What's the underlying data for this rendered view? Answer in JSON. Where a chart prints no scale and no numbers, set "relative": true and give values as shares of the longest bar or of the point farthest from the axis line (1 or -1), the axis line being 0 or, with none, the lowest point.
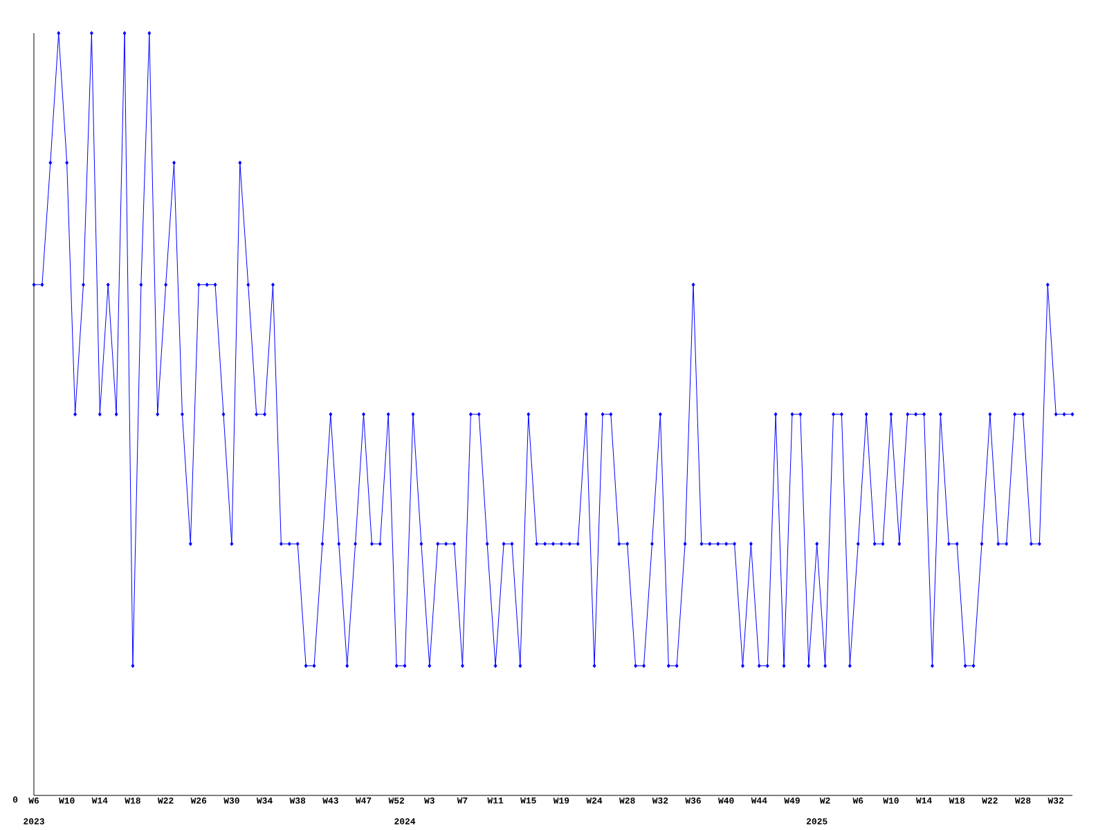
{
  "chart_data": {
    "type": "line",
    "relative": true,
    "color": "#0000ff",
    "marker": "diamond",
    "line_style": "solid",
    "categories": [
      "W6",
      null,
      null,
      null,
      "W10",
      null,
      null,
      null,
      "W14",
      null,
      null,
      null,
      "W18",
      null,
      null,
      null,
      "W22",
      null,
      null,
      null,
      "W26",
      null,
      null,
      null,
      "W30",
      null,
      null,
      null,
      "W34",
      null,
      null,
      null,
      "W38",
      null,
      null,
      null,
      "W43",
      null,
      null,
      null,
      "W47",
      null,
      null,
      null,
      "W52",
      null,
      null,
      null,
      "W3",
      null,
      null,
      null,
      "W7",
      null,
      null,
      null,
      "W11",
      null,
      null,
      null,
      "W15",
      null,
      null,
      null,
      "W19",
      null,
      null,
      null,
      "W24",
      null,
      null,
      null,
      "W28",
      null,
      null,
      null,
      "W32",
      null,
      null,
      null,
      "W36",
      null,
      null,
      null,
      "W40",
      null,
      null,
      null,
      "W44",
      null,
      null,
      null,
      "W49",
      null,
      null,
      null,
      "W2",
      null,
      null,
      null,
      "W6",
      null,
      null,
      null,
      "W10",
      null,
      null,
      null,
      "W14",
      null,
      null,
      null,
      "W18",
      null,
      null,
      null,
      "W22",
      null,
      null,
      null,
      "W28",
      null,
      null,
      null,
      "W32",
      null,
      null
    ],
    "values": [
      0.67,
      0.67,
      0.83,
      1,
      0.83,
      0.5,
      0.67,
      1,
      0.5,
      0.67,
      0.5,
      1,
      0.17,
      0.67,
      1,
      0.5,
      0.67,
      0.83,
      0.5,
      0.33,
      0.67,
      0.67,
      0.67,
      0.5,
      0.33,
      0.83,
      0.67,
      0.5,
      0.5,
      0.67,
      0.33,
      0.33,
      0.33,
      0.17,
      0.17,
      0.33,
      0.5,
      0.33,
      0.17,
      0.33,
      0.5,
      0.33,
      0.33,
      0.5,
      0.17,
      0.17,
      0.5,
      0.33,
      0.17,
      0.33,
      0.33,
      0.33,
      0.17,
      0.5,
      0.5,
      0.33,
      0.17,
      0.33,
      0.33,
      0.17,
      0.5,
      0.33,
      0.33,
      0.33,
      0.33,
      0.33,
      0.33,
      0.5,
      0.17,
      0.5,
      0.5,
      0.33,
      0.33,
      0.17,
      0.17,
      0.33,
      0.5,
      0.17,
      0.17,
      0.33,
      0.67,
      0.33,
      0.33,
      0.33,
      0.33,
      0.33,
      0.17,
      0.33,
      0.17,
      0.17,
      0.5,
      0.17,
      0.5,
      0.5,
      0.17,
      0.33,
      0.17,
      0.5,
      0.5,
      0.17,
      0.33,
      0.5,
      0.33,
      0.33,
      0.5,
      0.33,
      0.5,
      0.5,
      0.5,
      0.17,
      0.5,
      0.33,
      0.33,
      0.17,
      0.17,
      0.33,
      0.5,
      0.33,
      0.33,
      0.5,
      0.5,
      0.33,
      0.33,
      0.67,
      0.5,
      0.5,
      0.5
    ],
    "annotations": [
      "0",
      "2023",
      "2024",
      "2025"
    ]
  }
}
